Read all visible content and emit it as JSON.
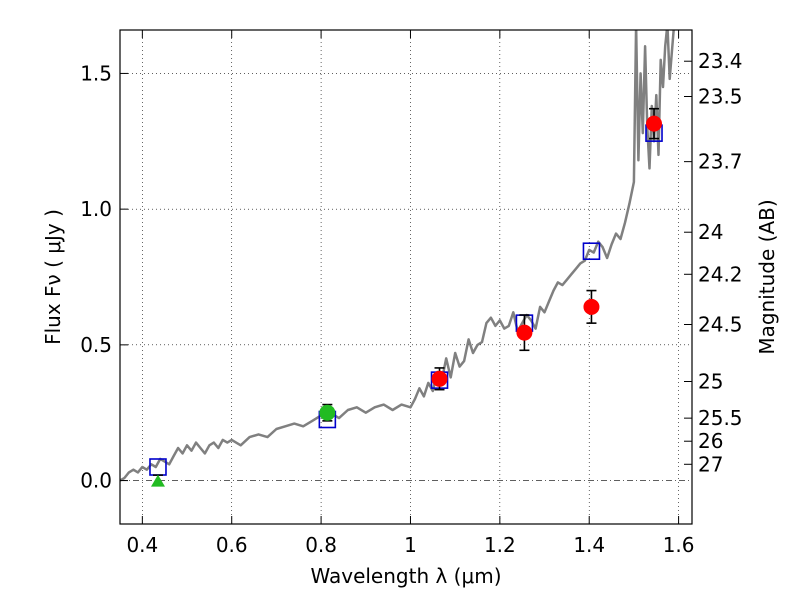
{
  "chart_data": {
    "type": "scatter",
    "title": "",
    "xlabel": "Wavelength  λ (μm)",
    "ylabel": "Flux  Fν ( μJy )",
    "ylabel_right": "Magnitude (AB)",
    "xlim": [
      0.35,
      1.63
    ],
    "ylim": [
      -0.16,
      1.66
    ],
    "grid": true,
    "grid_style": "dotted",
    "x_ticks": [
      0.4,
      0.6,
      0.8,
      1.0,
      1.2,
      1.4,
      1.6
    ],
    "x_tick_labels": [
      "0.4",
      "0.6",
      "0.8",
      "1",
      "1.2",
      "1.4",
      "1.6"
    ],
    "y_ticks": [
      0.0,
      0.5,
      1.0,
      1.5
    ],
    "y_tick_labels": [
      "0.0",
      "0.5",
      "1.0",
      "1.5"
    ],
    "right_ticks": [
      {
        "flux": 1.545,
        "label": "23.4"
      },
      {
        "flux": 1.415,
        "label": "23.5"
      },
      {
        "flux": 1.175,
        "label": "23.7"
      },
      {
        "flux": 0.915,
        "label": "24"
      },
      {
        "flux": 0.76,
        "label": "24.2"
      },
      {
        "flux": 0.575,
        "label": "24.5"
      },
      {
        "flux": 0.365,
        "label": "25"
      },
      {
        "flux": 0.23,
        "label": "25.5"
      },
      {
        "flux": 0.145,
        "label": "26"
      },
      {
        "flux": 0.06,
        "label": "27"
      }
    ],
    "zero_line": {
      "y": 0.0,
      "style": "dash-dot"
    },
    "series": [
      {
        "kind": "model_spectrum",
        "color": "#808080",
        "x": [
          0.35,
          0.36,
          0.37,
          0.38,
          0.39,
          0.4,
          0.41,
          0.42,
          0.43,
          0.44,
          0.45,
          0.46,
          0.47,
          0.48,
          0.49,
          0.5,
          0.51,
          0.52,
          0.53,
          0.54,
          0.55,
          0.56,
          0.57,
          0.58,
          0.59,
          0.6,
          0.62,
          0.64,
          0.66,
          0.68,
          0.7,
          0.72,
          0.74,
          0.76,
          0.78,
          0.8,
          0.82,
          0.84,
          0.86,
          0.88,
          0.9,
          0.92,
          0.94,
          0.96,
          0.98,
          1.0,
          1.01,
          1.02,
          1.03,
          1.04,
          1.05,
          1.06,
          1.07,
          1.08,
          1.09,
          1.1,
          1.11,
          1.12,
          1.13,
          1.14,
          1.15,
          1.16,
          1.17,
          1.18,
          1.19,
          1.2,
          1.21,
          1.22,
          1.23,
          1.24,
          1.25,
          1.26,
          1.27,
          1.28,
          1.29,
          1.3,
          1.31,
          1.32,
          1.33,
          1.34,
          1.35,
          1.36,
          1.37,
          1.38,
          1.39,
          1.4,
          1.41,
          1.42,
          1.43,
          1.44,
          1.45,
          1.46,
          1.47,
          1.48,
          1.49,
          1.5,
          1.505,
          1.51,
          1.515,
          1.52,
          1.525,
          1.53,
          1.535,
          1.54,
          1.545,
          1.55,
          1.555,
          1.56,
          1.565,
          1.57,
          1.575,
          1.58,
          1.585,
          1.59
        ],
        "y": [
          0.0,
          0.01,
          0.03,
          0.04,
          0.03,
          0.05,
          0.04,
          0.06,
          0.05,
          0.08,
          0.07,
          0.06,
          0.09,
          0.12,
          0.1,
          0.13,
          0.11,
          0.14,
          0.12,
          0.1,
          0.13,
          0.14,
          0.12,
          0.15,
          0.14,
          0.15,
          0.13,
          0.16,
          0.17,
          0.16,
          0.19,
          0.2,
          0.21,
          0.2,
          0.22,
          0.24,
          0.25,
          0.23,
          0.26,
          0.27,
          0.25,
          0.27,
          0.28,
          0.26,
          0.28,
          0.27,
          0.3,
          0.34,
          0.31,
          0.36,
          0.33,
          0.4,
          0.37,
          0.45,
          0.38,
          0.47,
          0.42,
          0.44,
          0.52,
          0.47,
          0.5,
          0.51,
          0.58,
          0.6,
          0.57,
          0.59,
          0.56,
          0.57,
          0.62,
          0.55,
          0.58,
          0.61,
          0.59,
          0.56,
          0.64,
          0.62,
          0.66,
          0.7,
          0.73,
          0.72,
          0.74,
          0.76,
          0.78,
          0.8,
          0.81,
          0.85,
          0.84,
          0.88,
          0.86,
          0.82,
          0.87,
          0.91,
          0.89,
          0.95,
          1.02,
          1.1,
          1.68,
          1.18,
          1.5,
          1.28,
          1.6,
          1.3,
          1.15,
          1.38,
          1.25,
          1.42,
          1.2,
          1.55,
          1.45,
          1.6,
          1.68,
          1.48,
          1.58,
          1.68
        ]
      },
      {
        "kind": "model_photometry",
        "marker": "open-square",
        "color": "#0000cc",
        "x": [
          0.435,
          0.814,
          1.065,
          1.255,
          1.405,
          1.545
        ],
        "y": [
          0.05,
          0.225,
          0.37,
          0.58,
          0.845,
          1.28
        ]
      },
      {
        "kind": "observed_photometry",
        "marker": "filled-circle",
        "color": "#ff0000",
        "x": [
          1.065,
          1.255,
          1.405,
          1.545
        ],
        "y": [
          0.375,
          0.545,
          0.64,
          1.315
        ],
        "yerr": [
          0.04,
          0.065,
          0.06,
          0.055
        ]
      },
      {
        "kind": "observed_photometry_other",
        "marker": "filled-circle",
        "color": "#22bb22",
        "x": [
          0.814
        ],
        "y": [
          0.25
        ],
        "yerr": [
          0.03
        ]
      },
      {
        "kind": "upper_limit",
        "marker": "triangle",
        "color": "#22bb22",
        "x": [
          0.435
        ],
        "y": [
          0.0
        ],
        "yerr": [
          0.01
        ]
      }
    ]
  }
}
